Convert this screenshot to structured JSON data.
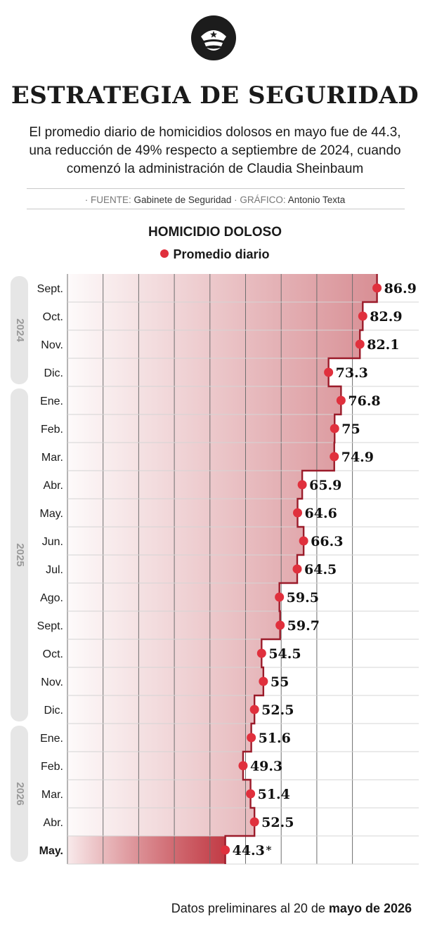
{
  "header": {
    "logo_icon": "police-cap-icon",
    "title": "ESTRATEGIA DE SEGURIDAD",
    "subtitle": "El promedio diario de homicidios dolosos en mayo fue de 44.3, una reducción de 49% respecto a septiembre de 2024, cuando comenzó la administración de Claudia Sheinbaum",
    "source_key": "FUENTE:",
    "source_value": "Gabinete de Seguridad",
    "graphic_key": "GRÁFICO:",
    "graphic_value": "Antonio Texta",
    "source_prefix": "·",
    "graphic_prefix": "·"
  },
  "footnote": {
    "text_prefix": "Datos preliminares al 20 de ",
    "text_bold": "mayo de 2026"
  },
  "chart_data": {
    "type": "line",
    "title": "HOMICIDIO DOLOSO",
    "legend": [
      "Promedio diario"
    ],
    "legend_placement": "top",
    "colors": {
      "series": "#e0303d",
      "step_line": "#9b1b2a",
      "area": "#c9636b",
      "highlight": "#c0353f"
    },
    "grid": true,
    "categories": [
      "Sept.",
      "Oct.",
      "Nov.",
      "Dic.",
      "Ene.",
      "Feb.",
      "Mar.",
      "Abr.",
      "May.",
      "Jun.",
      "Jul.",
      "Ago.",
      "Sept.",
      "Oct.",
      "Nov.",
      "Dic.",
      "Ene.",
      "Feb.",
      "Mar.",
      "Abr.",
      "May."
    ],
    "year_groups": [
      {
        "label": "2024",
        "months": 4
      },
      {
        "label": "2025",
        "months": 12
      },
      {
        "label": "2026",
        "months": 5
      }
    ],
    "series": [
      {
        "name": "Promedio diario",
        "values": [
          86.9,
          82.9,
          82.1,
          73.3,
          76.8,
          75,
          74.9,
          65.9,
          64.6,
          66.3,
          64.5,
          59.5,
          59.7,
          54.5,
          55,
          52.5,
          51.6,
          49.3,
          51.4,
          52.5,
          44.3
        ],
        "labels": [
          "86.9",
          "82.9",
          "82.1",
          "73.3",
          "76.8",
          "75",
          "74.9",
          "65.9",
          "64.6",
          "66.3",
          "64.5",
          "59.5",
          "59.7",
          "54.5",
          "55",
          "52.5",
          "51.6",
          "49.3",
          "51.4",
          "52.5",
          "44.3"
        ]
      }
    ],
    "highlight_index": 20,
    "highlight_marker": "*",
    "xlim": [
      0,
      90
    ]
  }
}
